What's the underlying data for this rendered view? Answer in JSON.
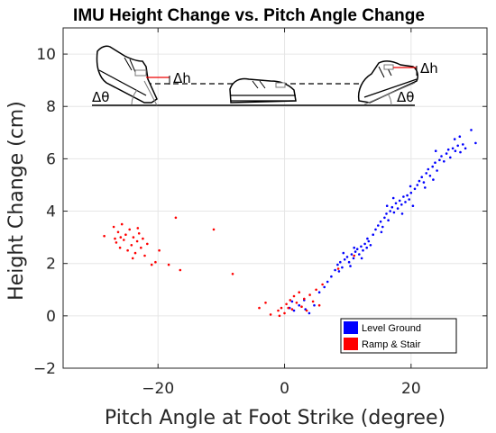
{
  "chart_data": {
    "type": "scatter",
    "title": "IMU Height Change vs. Pitch Angle Change",
    "xlabel": "Pitch Angle at Foot Strike (degree)",
    "ylabel": "Height Change (cm)",
    "xlim": [
      -35,
      32
    ],
    "ylim": [
      -2,
      11
    ],
    "xticks": [
      -20,
      0,
      20
    ],
    "yticks": [
      -2,
      0,
      2,
      4,
      6,
      8,
      10
    ],
    "xtick_labels": [
      "−20",
      "0",
      "20"
    ],
    "ytick_labels": [
      "−2",
      "0",
      "2",
      "4",
      "6",
      "8",
      "10"
    ],
    "grid": true,
    "legend_position": "bottom-right",
    "series": [
      {
        "name": "Level Ground",
        "color": "#0000ff",
        "points": [
          [
            0.8,
            0.3
          ],
          [
            1.5,
            0.2
          ],
          [
            2.3,
            0.4
          ],
          [
            3.1,
            0.6
          ],
          [
            3.9,
            0.1
          ],
          [
            4.7,
            0.4
          ],
          [
            1.2,
            0.55
          ],
          [
            3.3,
            0.25
          ],
          [
            5.5,
            0.9
          ],
          [
            6.3,
            1.1
          ],
          [
            6.8,
            1.3
          ],
          [
            7.4,
            1.5
          ],
          [
            8.0,
            1.75
          ],
          [
            8.4,
            1.95
          ],
          [
            8.8,
            2.05
          ],
          [
            9.1,
            1.85
          ],
          [
            9.5,
            2.15
          ],
          [
            9.9,
            2.25
          ],
          [
            10.2,
            2.05
          ],
          [
            10.6,
            2.35
          ],
          [
            10.9,
            2.2
          ],
          [
            11.2,
            2.45
          ],
          [
            11.5,
            2.55
          ],
          [
            11.8,
            2.35
          ],
          [
            12.1,
            2.65
          ],
          [
            12.4,
            2.5
          ],
          [
            12.7,
            2.75
          ],
          [
            13.0,
            2.6
          ],
          [
            13.3,
            2.85
          ],
          [
            13.6,
            2.7
          ],
          [
            9.3,
            2.4
          ],
          [
            10.4,
            1.9
          ],
          [
            11.0,
            2.6
          ],
          [
            12.2,
            2.2
          ],
          [
            8.6,
            1.7
          ],
          [
            13.1,
            2.95
          ],
          [
            14.0,
            3.1
          ],
          [
            14.4,
            3.3
          ],
          [
            14.8,
            3.45
          ],
          [
            15.2,
            3.6
          ],
          [
            15.5,
            3.4
          ],
          [
            15.8,
            3.75
          ],
          [
            16.1,
            3.9
          ],
          [
            16.4,
            3.65
          ],
          [
            16.7,
            4.0
          ],
          [
            17.0,
            4.15
          ],
          [
            17.3,
            3.95
          ],
          [
            17.6,
            4.3
          ],
          [
            17.9,
            4.1
          ],
          [
            18.2,
            4.4
          ],
          [
            18.5,
            4.25
          ],
          [
            18.8,
            4.55
          ],
          [
            19.1,
            4.35
          ],
          [
            19.4,
            4.6
          ],
          [
            19.7,
            4.45
          ],
          [
            20.0,
            4.7
          ],
          [
            20.3,
            4.2
          ],
          [
            17.2,
            4.5
          ],
          [
            18.6,
            3.9
          ],
          [
            19.9,
            4.95
          ],
          [
            16.2,
            4.2
          ],
          [
            15.3,
            3.2
          ],
          [
            20.6,
            4.85
          ],
          [
            21.0,
            5.0
          ],
          [
            21.3,
            5.15
          ],
          [
            21.7,
            5.3
          ],
          [
            22.0,
            5.1
          ],
          [
            22.4,
            5.45
          ],
          [
            22.7,
            5.6
          ],
          [
            23.0,
            5.35
          ],
          [
            23.4,
            5.7
          ],
          [
            23.8,
            5.85
          ],
          [
            24.1,
            5.55
          ],
          [
            24.5,
            5.95
          ],
          [
            24.8,
            6.1
          ],
          [
            25.2,
            5.9
          ],
          [
            25.6,
            6.2
          ],
          [
            25.9,
            6.35
          ],
          [
            26.2,
            6.05
          ],
          [
            26.6,
            6.4
          ],
          [
            27.0,
            6.3
          ],
          [
            27.4,
            6.5
          ],
          [
            27.8,
            6.25
          ],
          [
            28.2,
            6.55
          ],
          [
            26.9,
            6.75
          ],
          [
            27.7,
            6.85
          ],
          [
            23.9,
            6.3
          ],
          [
            22.2,
            4.9
          ],
          [
            28.6,
            6.4
          ],
          [
            29.5,
            7.1
          ],
          [
            30.2,
            6.6
          ],
          [
            23.5,
            5.2
          ]
        ]
      },
      {
        "name": "Ramp & Stair",
        "color": "#ff0000",
        "points": [
          [
            -28.5,
            3.05
          ],
          [
            -27.0,
            3.4
          ],
          [
            -26.6,
            2.8
          ],
          [
            -26.3,
            3.2
          ],
          [
            -26.0,
            2.6
          ],
          [
            -25.7,
            3.5
          ],
          [
            -25.4,
            2.9
          ],
          [
            -25.1,
            3.1
          ],
          [
            -24.8,
            2.5
          ],
          [
            -24.5,
            3.3
          ],
          [
            -24.2,
            2.7
          ],
          [
            -23.9,
            3.0
          ],
          [
            -23.6,
            2.4
          ],
          [
            -23.3,
            2.85
          ],
          [
            -23.0,
            3.15
          ],
          [
            -22.7,
            2.6
          ],
          [
            -22.4,
            2.95
          ],
          [
            -22.1,
            2.3
          ],
          [
            -21.7,
            2.75
          ],
          [
            -25.9,
            3.0
          ],
          [
            -24.0,
            2.2
          ],
          [
            -23.2,
            3.35
          ],
          [
            -26.8,
            2.95
          ],
          [
            -20.4,
            2.05
          ],
          [
            -19.8,
            2.5
          ],
          [
            -18.3,
            1.95
          ],
          [
            -16.5,
            1.75
          ],
          [
            -21.0,
            1.95
          ],
          [
            -17.2,
            3.75
          ],
          [
            -11.2,
            3.3
          ],
          [
            -8.2,
            1.6
          ],
          [
            -4.0,
            0.3
          ],
          [
            -2.2,
            0.05
          ],
          [
            -1.0,
            0.2
          ],
          [
            -0.5,
            0.3
          ],
          [
            0.0,
            0.1
          ],
          [
            0.3,
            0.45
          ],
          [
            0.6,
            0.3
          ],
          [
            0.9,
            0.6
          ],
          [
            1.2,
            0.25
          ],
          [
            1.5,
            0.75
          ],
          [
            1.9,
            0.5
          ],
          [
            2.3,
            0.9
          ],
          [
            2.7,
            0.35
          ],
          [
            3.1,
            0.65
          ],
          [
            3.5,
            0.2
          ],
          [
            4.0,
            0.8
          ],
          [
            4.5,
            0.55
          ],
          [
            5.0,
            1.0
          ],
          [
            5.5,
            0.4
          ],
          [
            6.0,
            1.2
          ],
          [
            8.5,
            1.8
          ],
          [
            11.0,
            2.3
          ],
          [
            -3.0,
            0.5
          ],
          [
            -0.8,
            0.0
          ]
        ]
      }
    ]
  },
  "annotations": {
    "delta_h_left": "Δh",
    "delta_h_right": "Δh",
    "delta_theta_left": "Δθ",
    "delta_theta_right": "Δθ"
  }
}
